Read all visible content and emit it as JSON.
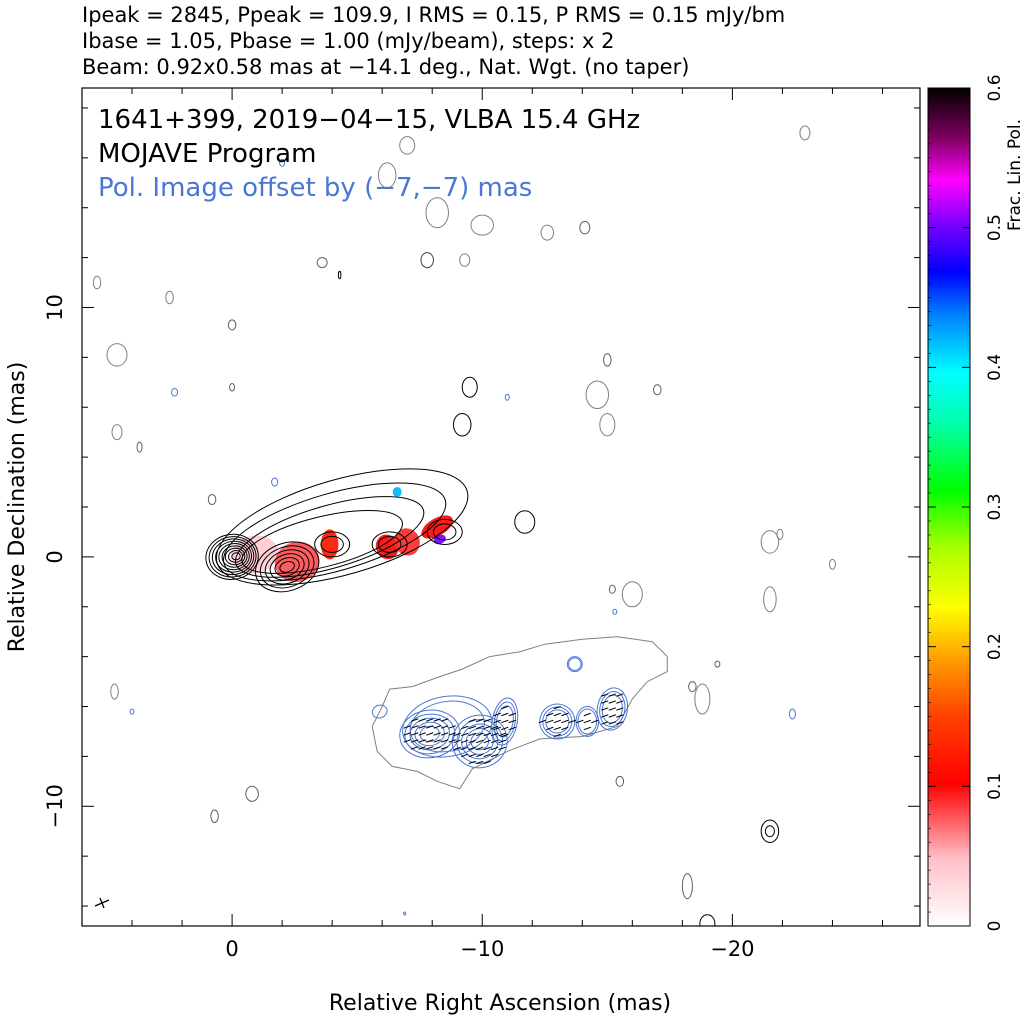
{
  "header": {
    "line1": "Ipeak = 2845, Ppeak = 109.9, I RMS = 0.15, P RMS = 0.15 mJy/bm",
    "line2": "Ibase = 1.05, Pbase = 1.00 (mJy/beam), steps: x 2",
    "line3": "Beam: 0.92x0.58 mas at −14.1 deg., Nat. Wgt. (no taper)"
  },
  "annotations": {
    "source": "1641+399, 2019−04−15, VLBA 15.4 GHz",
    "program": "MOJAVE Program",
    "pol_offset": "Pol. Image offset by (−7,−7) mas"
  },
  "colors": {
    "total_intensity_contour": "#000000",
    "pol_contour": "#4a77d4",
    "offset_intensity_contour": "#808080"
  },
  "chart_data": {
    "type": "contour",
    "title": "1641+399, 2019−04−15, VLBA 15.4 GHz",
    "xlabel": "Relative Right Ascension (mas)",
    "ylabel": "Relative Declination (mas)",
    "xlim": [
      6,
      -27.5
    ],
    "ylim": [
      -14.8,
      18.8
    ],
    "x_ticks": [
      0,
      -10,
      -20
    ],
    "x_tick_labels": [
      "0",
      "−10",
      "−20"
    ],
    "y_ticks": [
      10,
      0,
      -10
    ],
    "y_tick_labels": [
      "10",
      "0",
      "−10"
    ],
    "grid": false,
    "stats": {
      "Ipeak_mJy_per_beam": 2845,
      "Ppeak_mJy_per_beam": 109.9,
      "I_RMS_mJy_per_beam": 0.15,
      "P_RMS_mJy_per_beam": 0.15,
      "Ibase_mJy_per_beam": 1.05,
      "Pbase_mJy_per_beam": 1.0,
      "contour_step_factor": 2
    },
    "beam": {
      "major_mas": 0.92,
      "minor_mas": 0.58,
      "pa_deg": -14.1,
      "weighting": "Nat. Wgt. (no taper)"
    },
    "pol_offset_mas": [
      -7,
      -7
    ],
    "colorbar": {
      "label": "Frac. Lin. Pol.",
      "range": [
        0,
        0.6
      ],
      "ticks": [
        0,
        0.1,
        0.2,
        0.3,
        0.4,
        0.5,
        0.6
      ],
      "tick_labels": [
        "0",
        "0.1",
        "0.2",
        "0.3",
        "0.4",
        "0.5",
        "0.6"
      ]
    },
    "core": {
      "ra": 0,
      "dec": 0
    },
    "jet_components": [
      {
        "ra": -2.2,
        "dec": -0.4
      },
      {
        "ra": -4.0,
        "dec": 0.5
      },
      {
        "ra": -6.3,
        "dec": 0.5
      },
      {
        "ra": -8.5,
        "dec": 1.0
      }
    ],
    "fractional_polarization_patches": [
      {
        "ra": -0.9,
        "dec": 0.1,
        "frac_pol": 0.04
      },
      {
        "ra": -2.6,
        "dec": -0.2,
        "frac_pol": 0.08
      },
      {
        "ra": -3.9,
        "dec": 0.5,
        "frac_pol": 0.12
      },
      {
        "ra": -6.2,
        "dec": 0.4,
        "frac_pol": 0.1
      },
      {
        "ra": -7.0,
        "dec": 0.6,
        "frac_pol": 0.09
      },
      {
        "ra": -8.2,
        "dec": 1.2,
        "frac_pol": 0.1
      },
      {
        "ra": -6.6,
        "dec": 2.6,
        "frac_pol": 0.42
      },
      {
        "ra": -8.3,
        "dec": 0.7,
        "frac_pol": 0.5
      }
    ]
  }
}
